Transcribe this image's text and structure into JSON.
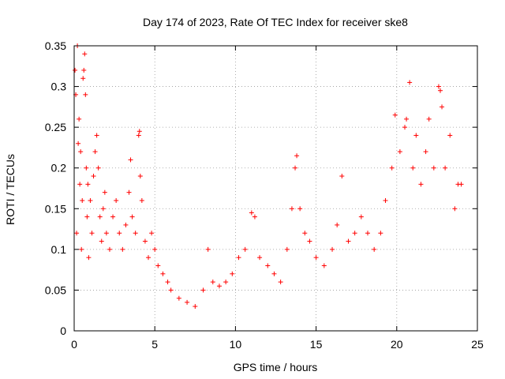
{
  "chart_data": {
    "type": "scatter",
    "title": "Day 174 of 2023, Rate Of TEC Index for receiver ske8",
    "xlabel": "GPS time / hours",
    "ylabel": "ROTI / TECUs",
    "xlim": [
      0,
      25
    ],
    "ylim": [
      0,
      0.35
    ],
    "xticks": [
      "0",
      "5",
      "10",
      "15",
      "20",
      "25"
    ],
    "yticks": [
      "0",
      "0.05",
      "0.1",
      "0.15",
      "0.2",
      "0.25",
      "0.3",
      "0.35"
    ],
    "grid": true,
    "marker": "+",
    "color": "#ff0000",
    "series": [
      {
        "points": [
          [
            0.05,
            0.32
          ],
          [
            0.1,
            0.29
          ],
          [
            0.15,
            0.12
          ],
          [
            0.2,
            0.35
          ],
          [
            0.25,
            0.23
          ],
          [
            0.3,
            0.26
          ],
          [
            0.35,
            0.18
          ],
          [
            0.4,
            0.22
          ],
          [
            0.45,
            0.1
          ],
          [
            0.5,
            0.16
          ],
          [
            0.55,
            0.31
          ],
          [
            0.6,
            0.32
          ],
          [
            0.65,
            0.34
          ],
          [
            0.7,
            0.29
          ],
          [
            0.75,
            0.2
          ],
          [
            0.8,
            0.14
          ],
          [
            0.85,
            0.18
          ],
          [
            0.9,
            0.09
          ],
          [
            1.0,
            0.16
          ],
          [
            1.1,
            0.12
          ],
          [
            1.2,
            0.19
          ],
          [
            1.3,
            0.22
          ],
          [
            1.4,
            0.24
          ],
          [
            1.5,
            0.2
          ],
          [
            1.6,
            0.14
          ],
          [
            1.7,
            0.11
          ],
          [
            1.8,
            0.15
          ],
          [
            1.9,
            0.17
          ],
          [
            2.0,
            0.12
          ],
          [
            2.2,
            0.1
          ],
          [
            2.4,
            0.14
          ],
          [
            2.6,
            0.16
          ],
          [
            2.8,
            0.12
          ],
          [
            3.0,
            0.1
          ],
          [
            3.2,
            0.13
          ],
          [
            3.4,
            0.17
          ],
          [
            3.5,
            0.21
          ],
          [
            3.6,
            0.14
          ],
          [
            3.8,
            0.12
          ],
          [
            4.0,
            0.24
          ],
          [
            4.05,
            0.245
          ],
          [
            4.1,
            0.19
          ],
          [
            4.2,
            0.16
          ],
          [
            4.4,
            0.11
          ],
          [
            4.6,
            0.09
          ],
          [
            4.8,
            0.12
          ],
          [
            5.0,
            0.1
          ],
          [
            5.2,
            0.08
          ],
          [
            5.5,
            0.07
          ],
          [
            5.8,
            0.06
          ],
          [
            6.0,
            0.05
          ],
          [
            6.5,
            0.04
          ],
          [
            7.0,
            0.035
          ],
          [
            7.5,
            0.03
          ],
          [
            8.0,
            0.05
          ],
          [
            8.3,
            0.1
          ],
          [
            8.6,
            0.06
          ],
          [
            9.0,
            0.055
          ],
          [
            9.4,
            0.06
          ],
          [
            9.8,
            0.07
          ],
          [
            10.2,
            0.09
          ],
          [
            10.6,
            0.1
          ],
          [
            11.0,
            0.145
          ],
          [
            11.2,
            0.14
          ],
          [
            11.5,
            0.09
          ],
          [
            12.0,
            0.08
          ],
          [
            12.4,
            0.07
          ],
          [
            12.8,
            0.06
          ],
          [
            13.2,
            0.1
          ],
          [
            13.5,
            0.15
          ],
          [
            13.7,
            0.2
          ],
          [
            13.8,
            0.215
          ],
          [
            14.0,
            0.15
          ],
          [
            14.3,
            0.12
          ],
          [
            14.6,
            0.11
          ],
          [
            15.0,
            0.09
          ],
          [
            15.5,
            0.08
          ],
          [
            16.0,
            0.1
          ],
          [
            16.3,
            0.13
          ],
          [
            16.6,
            0.19
          ],
          [
            17.0,
            0.11
          ],
          [
            17.4,
            0.12
          ],
          [
            17.8,
            0.14
          ],
          [
            18.2,
            0.12
          ],
          [
            18.6,
            0.1
          ],
          [
            19.0,
            0.12
          ],
          [
            19.3,
            0.16
          ],
          [
            19.7,
            0.2
          ],
          [
            19.9,
            0.265
          ],
          [
            20.2,
            0.22
          ],
          [
            20.5,
            0.25
          ],
          [
            20.6,
            0.26
          ],
          [
            20.8,
            0.305
          ],
          [
            21.0,
            0.2
          ],
          [
            21.2,
            0.24
          ],
          [
            21.5,
            0.18
          ],
          [
            21.8,
            0.22
          ],
          [
            22.0,
            0.26
          ],
          [
            22.3,
            0.2
          ],
          [
            22.6,
            0.3
          ],
          [
            22.7,
            0.295
          ],
          [
            22.8,
            0.275
          ],
          [
            23.0,
            0.2
          ],
          [
            23.3,
            0.24
          ],
          [
            23.6,
            0.15
          ],
          [
            23.8,
            0.18
          ],
          [
            24.0,
            0.18
          ]
        ]
      }
    ]
  }
}
